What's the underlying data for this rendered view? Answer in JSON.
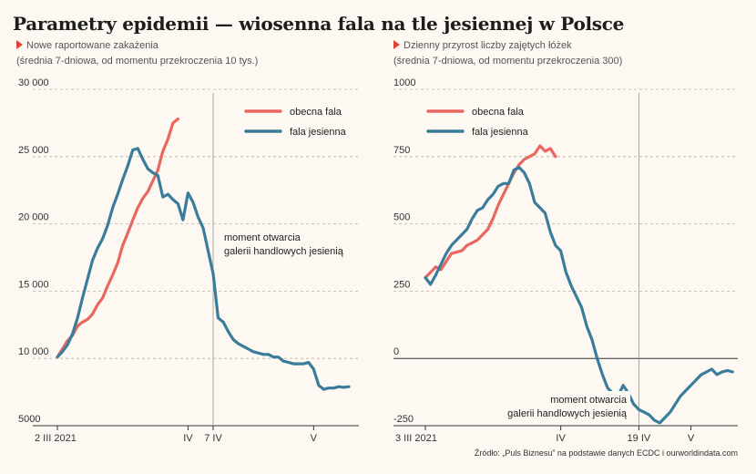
{
  "title": "Parametry epidemii — wiosenna fala na tle jesiennej w Polsce",
  "source": "Źródło: „Puls Biznesu” na podstawie danych ECDC i ourworldindata.com",
  "colors": {
    "current": "#e8675f",
    "autumn": "#3a7d9a",
    "marker": "#e0453a"
  },
  "chart_data": [
    {
      "type": "line",
      "title": "Nowe raportowane zakażenia",
      "subtitle": "(średnia 7-dniowa, od momentu przekroczenia 10 tys.)",
      "xlabel": "",
      "ylabel": "",
      "xlim": [
        0,
        60
      ],
      "ylim": [
        5000,
        30000
      ],
      "yticks": [
        5000,
        10000,
        15000,
        20000,
        25000,
        30000
      ],
      "ytick_labels": [
        "5000",
        "10 000",
        "15 000",
        "20 000",
        "25 000",
        "30 000"
      ],
      "xtick_positions": [
        0,
        26,
        31,
        51
      ],
      "xtick_labels": [
        "2 III 2021",
        "IV",
        "7 IV",
        "V"
      ],
      "grid": true,
      "legend_position": "top-right",
      "series": [
        {
          "name": "obecna fala",
          "key": "current",
          "x": [
            0,
            1,
            2,
            3,
            4,
            5,
            6,
            7,
            8,
            9,
            10,
            11,
            12,
            13,
            14,
            15,
            16,
            17,
            18,
            19,
            20,
            21,
            22,
            23,
            24
          ],
          "y": [
            10100,
            10700,
            11300,
            11700,
            12400,
            12700,
            12900,
            13300,
            14000,
            14500,
            15400,
            16200,
            17100,
            18400,
            19300,
            20300,
            21200,
            21900,
            22400,
            23200,
            24000,
            25400,
            26300,
            27500,
            27800
          ]
        },
        {
          "name": "fala jesienna",
          "key": "autumn",
          "x": [
            0,
            1,
            2,
            3,
            4,
            5,
            6,
            7,
            8,
            9,
            10,
            11,
            12,
            13,
            14,
            15,
            16,
            17,
            18,
            19,
            20,
            21,
            22,
            23,
            24,
            25,
            26,
            27,
            28,
            29,
            30,
            31,
            32,
            33,
            34,
            35,
            36,
            37,
            38,
            39,
            40,
            41,
            42,
            43,
            44,
            45,
            46,
            47,
            48,
            49,
            50,
            51,
            52,
            53,
            54,
            55,
            56,
            57,
            58
          ],
          "y": [
            10100,
            10500,
            11000,
            11800,
            13000,
            14500,
            15900,
            17300,
            18200,
            18900,
            19900,
            21200,
            22200,
            23300,
            24300,
            25500,
            25600,
            24800,
            24100,
            23800,
            23600,
            22000,
            22200,
            21800,
            21500,
            20300,
            22300,
            21600,
            20500,
            19700,
            18000,
            16300,
            13000,
            12700,
            12000,
            11400,
            11100,
            10900,
            10700,
            10500,
            10400,
            10300,
            10300,
            10100,
            10100,
            9800,
            9700,
            9600,
            9600,
            9600,
            9700,
            9200,
            8000,
            7700,
            7800,
            7800,
            7900,
            7850,
            7900
          ]
        }
      ],
      "annotation": {
        "line1": "moment otwarcia",
        "line2": "galerii handlowych jesienią",
        "x": 31
      }
    },
    {
      "type": "line",
      "title": "Dzienny przyrost liczby zajętych łóżek",
      "subtitle": "(średnia 7-dniowa, od momentu przekroczenia 300)",
      "xlabel": "",
      "ylabel": "",
      "xlim": [
        0,
        60
      ],
      "ylim": [
        -250,
        1000
      ],
      "yticks": [
        -250,
        0,
        250,
        500,
        750,
        1000
      ],
      "ytick_labels": [
        "-250",
        "0",
        "250",
        "500",
        "750",
        "1000"
      ],
      "xtick_positions": [
        0,
        26,
        41,
        51
      ],
      "xtick_labels": [
        "3 III 2021",
        "IV",
        "19 IV",
        "V"
      ],
      "grid": true,
      "legend_position": "top-left",
      "series": [
        {
          "name": "obecna fala",
          "key": "current",
          "x": [
            0,
            1,
            2,
            3,
            4,
            5,
            6,
            7,
            8,
            9,
            10,
            11,
            12,
            13,
            14,
            15,
            16,
            17,
            18,
            19,
            20,
            21,
            22,
            23,
            24,
            25
          ],
          "y": [
            300,
            320,
            340,
            330,
            360,
            390,
            395,
            400,
            420,
            430,
            440,
            460,
            480,
            520,
            570,
            610,
            650,
            690,
            720,
            740,
            750,
            760,
            790,
            770,
            780,
            750
          ]
        },
        {
          "name": "fala jesienna",
          "key": "autumn",
          "x": [
            0,
            1,
            2,
            3,
            4,
            5,
            6,
            7,
            8,
            9,
            10,
            11,
            12,
            13,
            14,
            15,
            16,
            17,
            18,
            19,
            20,
            21,
            22,
            23,
            24,
            25,
            26,
            27,
            28,
            29,
            30,
            31,
            32,
            33,
            34,
            35,
            36,
            37,
            38,
            39,
            40,
            41,
            42,
            43,
            44,
            45,
            46,
            47,
            48,
            49,
            50,
            51,
            52,
            53,
            54,
            55,
            56,
            57,
            58,
            59
          ],
          "y": [
            300,
            275,
            310,
            350,
            390,
            420,
            440,
            460,
            480,
            520,
            550,
            560,
            590,
            610,
            640,
            650,
            650,
            700,
            710,
            690,
            650,
            580,
            560,
            540,
            470,
            420,
            400,
            320,
            270,
            230,
            190,
            120,
            70,
            0,
            -60,
            -110,
            -130,
            -140,
            -100,
            -130,
            -170,
            -190,
            -200,
            -210,
            -230,
            -240,
            -220,
            -200,
            -170,
            -140,
            -120,
            -100,
            -80,
            -60,
            -50,
            -40,
            -60,
            -50,
            -45,
            -50
          ]
        }
      ],
      "annotation": {
        "line1": "moment otwarcia",
        "line2": "galerii handlowych jesienią",
        "x": 41
      }
    }
  ]
}
